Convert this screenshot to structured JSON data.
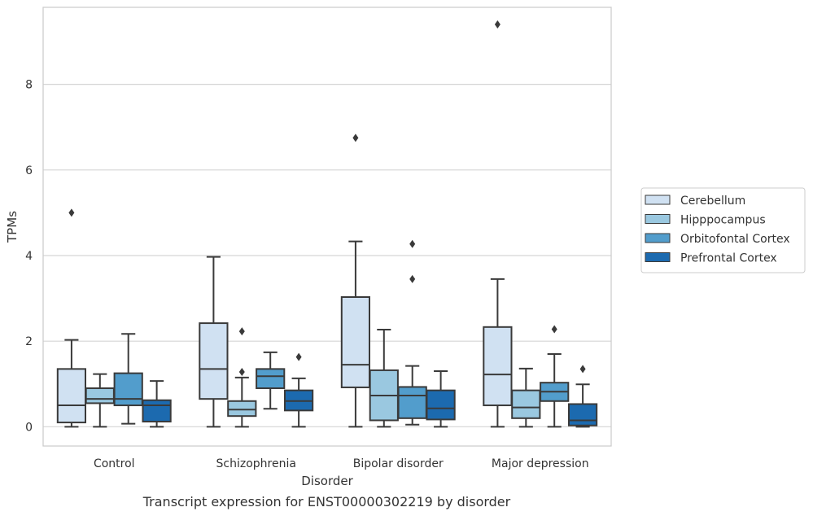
{
  "chart_data": {
    "type": "box",
    "caption": "Transcript expression for ENST00000302219 by disorder",
    "xlabel": "Disorder",
    "ylabel": "TPMs",
    "ylim": [
      -0.45,
      9.8
    ],
    "yticks": [
      0,
      2,
      4,
      6,
      8
    ],
    "grid": "horizontal",
    "legend_position": "right",
    "categories": [
      "Control",
      "Schizophrenia",
      "Bipolar disorder",
      "Major depression"
    ],
    "series": [
      {
        "name": "Cerebellum",
        "color": "#d0e1f2",
        "boxes": [
          {
            "whisker_low": 0.0,
            "q1": 0.1,
            "median": 0.5,
            "q3": 1.35,
            "whisker_high": 2.03,
            "outliers": [
              5.0
            ]
          },
          {
            "whisker_low": 0.0,
            "q1": 0.65,
            "median": 1.35,
            "q3": 2.42,
            "whisker_high": 3.97,
            "outliers": []
          },
          {
            "whisker_low": 0.0,
            "q1": 0.92,
            "median": 1.45,
            "q3": 3.03,
            "whisker_high": 4.33,
            "outliers": [
              6.75
            ]
          },
          {
            "whisker_low": 0.0,
            "q1": 0.5,
            "median": 1.22,
            "q3": 2.33,
            "whisker_high": 3.45,
            "outliers": [
              9.4
            ]
          }
        ]
      },
      {
        "name": "Hipppocampus",
        "color": "#9ac8e0",
        "boxes": [
          {
            "whisker_low": 0.0,
            "q1": 0.55,
            "median": 0.65,
            "q3": 0.9,
            "whisker_high": 1.23,
            "outliers": []
          },
          {
            "whisker_low": 0.0,
            "q1": 0.25,
            "median": 0.4,
            "q3": 0.6,
            "whisker_high": 1.15,
            "outliers": [
              1.28,
              2.23
            ]
          },
          {
            "whisker_low": 0.0,
            "q1": 0.15,
            "median": 0.73,
            "q3": 1.32,
            "whisker_high": 2.27,
            "outliers": []
          },
          {
            "whisker_low": 0.0,
            "q1": 0.2,
            "median": 0.45,
            "q3": 0.85,
            "whisker_high": 1.36,
            "outliers": []
          }
        ]
      },
      {
        "name": "Orbitofontal Cortex",
        "color": "#529dcc",
        "boxes": [
          {
            "whisker_low": 0.07,
            "q1": 0.5,
            "median": 0.65,
            "q3": 1.25,
            "whisker_high": 2.17,
            "outliers": []
          },
          {
            "whisker_low": 0.42,
            "q1": 0.9,
            "median": 1.18,
            "q3": 1.35,
            "whisker_high": 1.74,
            "outliers": []
          },
          {
            "whisker_low": 0.05,
            "q1": 0.2,
            "median": 0.73,
            "q3": 0.93,
            "whisker_high": 1.42,
            "outliers": [
              3.45,
              4.27
            ]
          },
          {
            "whisker_low": 0.0,
            "q1": 0.6,
            "median": 0.82,
            "q3": 1.03,
            "whisker_high": 1.7,
            "outliers": [
              2.28
            ]
          }
        ]
      },
      {
        "name": "Prefrontal Cortex",
        "color": "#1c6aaf",
        "boxes": [
          {
            "whisker_low": 0.0,
            "q1": 0.12,
            "median": 0.5,
            "q3": 0.62,
            "whisker_high": 1.07,
            "outliers": []
          },
          {
            "whisker_low": 0.0,
            "q1": 0.38,
            "median": 0.6,
            "q3": 0.85,
            "whisker_high": 1.13,
            "outliers": [
              1.63
            ]
          },
          {
            "whisker_low": 0.0,
            "q1": 0.17,
            "median": 0.43,
            "q3": 0.85,
            "whisker_high": 1.3,
            "outliers": []
          },
          {
            "whisker_low": 0.0,
            "q1": 0.03,
            "median": 0.15,
            "q3": 0.53,
            "whisker_high": 0.99,
            "outliers": [
              1.35
            ]
          }
        ]
      }
    ]
  }
}
